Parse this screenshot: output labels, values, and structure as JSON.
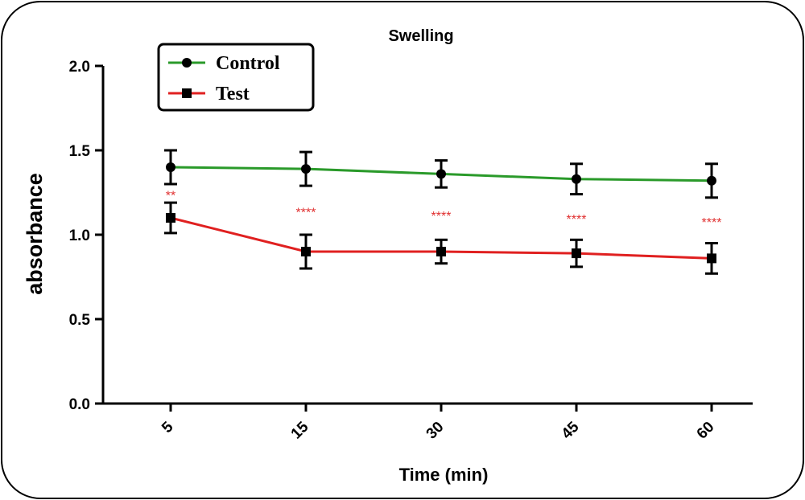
{
  "chart_data": {
    "type": "line",
    "title": "Swelling",
    "xlabel": "Time (min)",
    "ylabel": "absorbance",
    "categories": [
      "5",
      "15",
      "30",
      "45",
      "60"
    ],
    "ylim": [
      0,
      2.0
    ],
    "yticks": [
      "0.0",
      "0.5",
      "1.0",
      "1.5",
      "2.0"
    ],
    "grid": false,
    "legend_position": "top-left",
    "series": [
      {
        "name": "Control",
        "color": "#2a9a2a",
        "marker": "circle",
        "values": [
          1.4,
          1.39,
          1.36,
          1.33,
          1.32
        ],
        "errors": [
          0.1,
          0.1,
          0.08,
          0.09,
          0.1
        ]
      },
      {
        "name": "Test",
        "color": "#e02020",
        "marker": "square",
        "values": [
          1.1,
          0.9,
          0.9,
          0.89,
          0.86
        ],
        "errors": [
          0.09,
          0.1,
          0.07,
          0.08,
          0.09
        ]
      }
    ],
    "annotations": [
      "**",
      "****",
      "****",
      "****",
      "****"
    ],
    "annotation_color": "#e03030"
  }
}
